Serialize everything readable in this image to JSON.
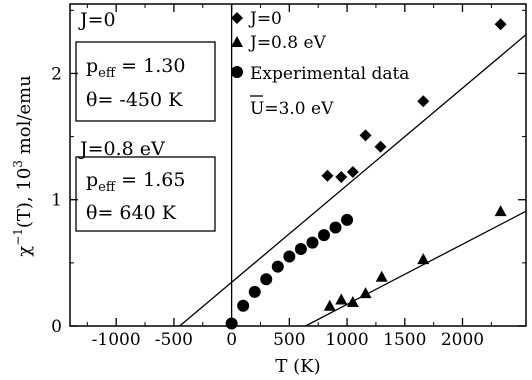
{
  "chart_data": {
    "type": "scatter",
    "xlabel": "T (K)",
    "ylabel": "χ⁻¹(T), 10³ mol/emu",
    "ylabel_parts": {
      "chi": "χ",
      "exp": "−1",
      "mid": "(T), 10",
      "exp2": "3",
      "end": " mol/emu"
    },
    "xlim": [
      -1400,
      2550
    ],
    "ylim": [
      0,
      2.55
    ],
    "x_ticks": [
      -1000,
      -500,
      0,
      500,
      1000,
      1500,
      2000
    ],
    "x_tick_labels": [
      "-1000",
      "-500",
      "0",
      "500",
      "1000",
      "1500",
      "2000"
    ],
    "y_ticks": [
      0,
      1,
      2
    ],
    "y_tick_labels": [
      "0",
      "1",
      "2"
    ],
    "grid": false,
    "legend_position": "top-center",
    "series": [
      {
        "name": "J=0",
        "marker": "diamond",
        "points": [
          [
            830,
            1.19
          ],
          [
            950,
            1.18
          ],
          [
            1050,
            1.22
          ],
          [
            1160,
            1.51
          ],
          [
            1290,
            1.42
          ],
          [
            1660,
            1.78
          ],
          [
            2330,
            2.39
          ]
        ]
      },
      {
        "name": "J=0.8 eV",
        "marker": "triangle",
        "points": [
          [
            850,
            0.16
          ],
          [
            950,
            0.21
          ],
          [
            1050,
            0.19
          ],
          [
            1160,
            0.26
          ],
          [
            1300,
            0.39
          ],
          [
            1660,
            0.53
          ],
          [
            2330,
            0.91
          ]
        ]
      },
      {
        "name": "Experimental data",
        "marker": "circle",
        "points": [
          [
            0,
            0.02
          ],
          [
            100,
            0.16
          ],
          [
            200,
            0.27
          ],
          [
            300,
            0.37
          ],
          [
            400,
            0.47
          ],
          [
            500,
            0.55
          ],
          [
            600,
            0.61
          ],
          [
            700,
            0.66
          ],
          [
            800,
            0.72
          ],
          [
            900,
            0.78
          ],
          [
            1000,
            0.84
          ]
        ]
      }
    ],
    "fit_lines": [
      {
        "x0_intercept": -450,
        "slope_per_1000K": 0.769
      },
      {
        "x0_intercept": 640,
        "slope_per_1000K": 0.476
      }
    ],
    "vline_at_x": 0,
    "annotations": {
      "j0_label": "J=0",
      "j0_peff_label": "p",
      "j0_peff_sub": "eff",
      "j0_peff_value": " = 1.30",
      "j0_theta": "θ= -450 K",
      "j08_label": "J=0.8 eV",
      "j08_peff_label": "p",
      "j08_peff_sub": "eff",
      "j08_peff_value": " = 1.65",
      "j08_theta": "θ= 640 K",
      "u_label": "U=3.0 eV"
    }
  }
}
